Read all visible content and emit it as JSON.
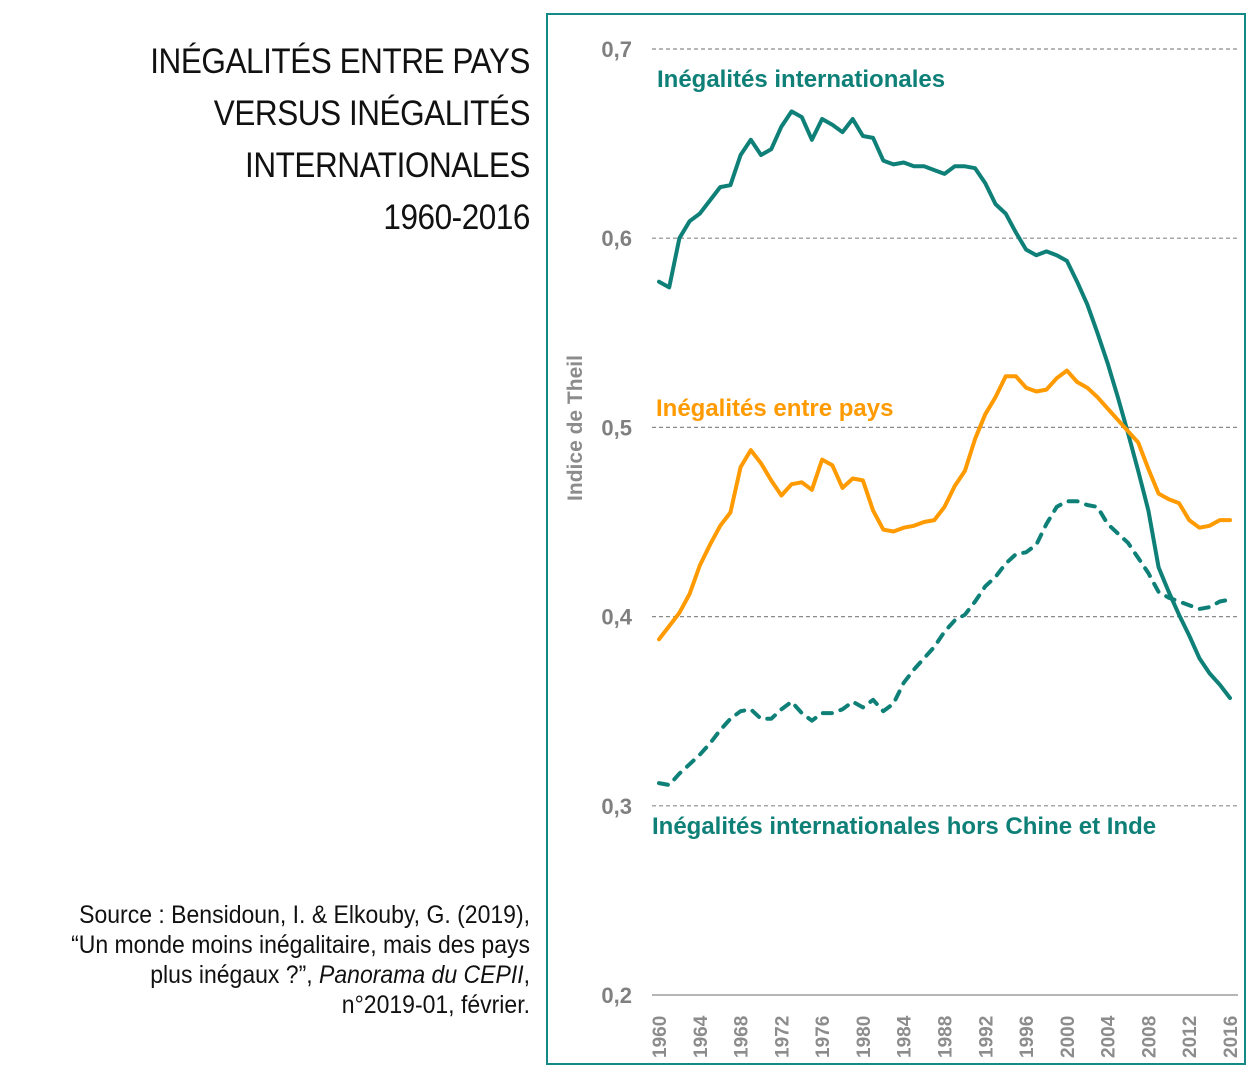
{
  "title_lines": [
    "INÉGALITÉS ENTRE PAYS",
    "VERSUS INÉGALITÉS",
    "INTERNATIONALES",
    "1960-2016"
  ],
  "source": {
    "line1": "Source : Bensidoun, I. & Elkouby, G. (2019),",
    "line2": "“Un monde moins inégalitaire, mais des pays",
    "line3_plain": "plus inégaux ?”, ",
    "line3_italic": "Panorama du CEPII",
    "line3_end": ",",
    "line4": "n°2019-01, février."
  },
  "colors": {
    "teal": "#0e8078",
    "orange": "#ff9a00",
    "grid": "#8a8a8a",
    "frame": "#138a86"
  },
  "chart_data": {
    "type": "line",
    "title": "Inégalités entre pays versus inégalités internationales 1960-2016",
    "xlabel": "",
    "ylabel": "Indice de Theil",
    "xlim": [
      1960,
      2016
    ],
    "ylim": [
      0.2,
      0.7
    ],
    "yticks": [
      0.2,
      0.3,
      0.4,
      0.5,
      0.6,
      0.7
    ],
    "ytick_labels": [
      "0,2",
      "0,3",
      "0,4",
      "0,5",
      "0,6",
      "0,7"
    ],
    "xticks": [
      1960,
      1964,
      1968,
      1972,
      1976,
      1980,
      1984,
      1988,
      1992,
      1996,
      2000,
      2004,
      2008,
      2012,
      2016
    ],
    "xtick_labels": [
      "1960",
      "1964",
      "1968",
      "1972",
      "1976",
      "1980",
      "1984",
      "1988",
      "1992",
      "1996",
      "2000",
      "2004",
      "2008",
      "2012",
      "2016"
    ],
    "grid": "horizontal dashed",
    "legend": "inline labels",
    "x": [
      1960,
      1961,
      1962,
      1963,
      1964,
      1965,
      1966,
      1967,
      1968,
      1969,
      1970,
      1971,
      1972,
      1973,
      1974,
      1975,
      1976,
      1977,
      1978,
      1979,
      1980,
      1981,
      1982,
      1983,
      1984,
      1985,
      1986,
      1987,
      1988,
      1989,
      1990,
      1991,
      1992,
      1993,
      1994,
      1995,
      1996,
      1997,
      1998,
      1999,
      2000,
      2001,
      2002,
      2003,
      2004,
      2005,
      2006,
      2007,
      2008,
      2009,
      2010,
      2011,
      2012,
      2013,
      2014,
      2015,
      2016
    ],
    "series": [
      {
        "name": "Inégalités internationales",
        "style": "solid",
        "color": "#0e8078",
        "label_position": "top-left",
        "values": [
          0.577,
          0.574,
          0.6,
          0.609,
          0.613,
          0.62,
          0.627,
          0.628,
          0.644,
          0.652,
          0.644,
          0.647,
          0.659,
          0.667,
          0.664,
          0.652,
          0.663,
          0.66,
          0.656,
          0.663,
          0.654,
          0.653,
          0.641,
          0.639,
          0.64,
          0.638,
          0.638,
          0.636,
          0.634,
          0.638,
          0.638,
          0.637,
          0.629,
          0.618,
          0.613,
          0.603,
          0.594,
          0.591,
          0.593,
          0.591,
          0.588,
          0.577,
          0.565,
          0.55,
          0.534,
          0.516,
          0.497,
          0.477,
          0.456,
          0.426,
          0.413,
          0.401,
          0.39,
          0.378,
          0.37,
          0.364,
          0.357
        ]
      },
      {
        "name": "Inégalités entre pays",
        "style": "solid",
        "color": "#ff9a00",
        "label_position": "middle-left",
        "values": [
          0.388,
          0.395,
          0.402,
          0.412,
          0.427,
          0.438,
          0.448,
          0.455,
          0.479,
          0.488,
          0.481,
          0.472,
          0.464,
          0.47,
          0.471,
          0.467,
          0.483,
          0.48,
          0.468,
          0.473,
          0.472,
          0.456,
          0.446,
          0.445,
          0.447,
          0.448,
          0.45,
          0.451,
          0.458,
          0.469,
          0.477,
          0.494,
          0.507,
          0.516,
          0.527,
          0.527,
          0.521,
          0.519,
          0.52,
          0.526,
          0.53,
          0.524,
          0.521,
          0.516,
          0.51,
          0.504,
          0.498,
          0.492,
          0.478,
          0.465,
          0.462,
          0.46,
          0.451,
          0.447,
          0.448,
          0.451,
          0.451
        ]
      },
      {
        "name": "Inégalités internationales hors Chine et Inde",
        "style": "dashed",
        "color": "#0e8078",
        "label_position": "bottom-left",
        "values": [
          0.312,
          0.311,
          0.317,
          0.322,
          0.327,
          0.333,
          0.34,
          0.346,
          0.35,
          0.351,
          0.346,
          0.346,
          0.351,
          0.355,
          0.349,
          0.345,
          0.349,
          0.349,
          0.351,
          0.355,
          0.352,
          0.356,
          0.35,
          0.354,
          0.365,
          0.372,
          0.378,
          0.384,
          0.392,
          0.398,
          0.401,
          0.408,
          0.416,
          0.421,
          0.428,
          0.433,
          0.434,
          0.438,
          0.449,
          0.458,
          0.461,
          0.461,
          0.459,
          0.458,
          0.449,
          0.444,
          0.439,
          0.431,
          0.423,
          0.413,
          0.41,
          0.408,
          0.406,
          0.404,
          0.405,
          0.408,
          0.409
        ]
      }
    ]
  }
}
